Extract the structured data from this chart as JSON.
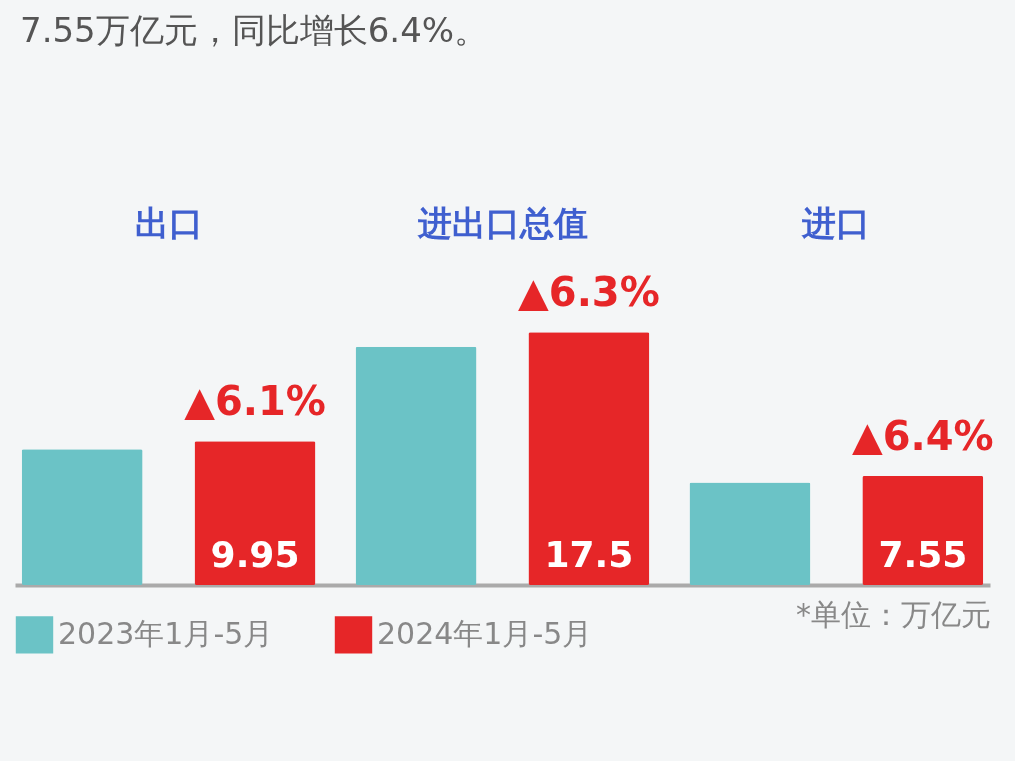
{
  "chart_data": {
    "type": "bar",
    "title": "7.55万亿元，同比增长6.4%。",
    "categories": [
      "出口",
      "进出口总值",
      "进口"
    ],
    "series": [
      {
        "name": "2023年1月-5月",
        "color": "#6bc3c6",
        "values": [
          9.4,
          16.5,
          7.1
        ]
      },
      {
        "name": "2024年1月-5月",
        "color": "#e62628",
        "values": [
          9.95,
          17.5,
          7.55
        ],
        "value_labels": [
          "9.95",
          "17.5",
          "7.55"
        ]
      }
    ],
    "annotations": [
      "▲6.1%",
      "▲6.3%",
      "▲6.4%",
      "*单位：万亿元"
    ],
    "legend": "bottom",
    "grid": false
  }
}
